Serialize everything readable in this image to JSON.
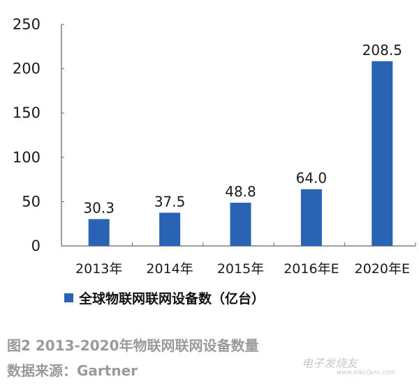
{
  "chart_data": {
    "type": "bar",
    "categories": [
      "2013年",
      "2014年",
      "2015年",
      "2016年E",
      "2020年E"
    ],
    "values": [
      30.3,
      37.5,
      48.8,
      64.0,
      208.5
    ],
    "data_labels": [
      "30.3",
      "37.5",
      "48.8",
      "64.0",
      "208.5"
    ],
    "ylim": [
      0,
      250
    ],
    "yticks": [
      "0",
      "50",
      "100",
      "150",
      "200",
      "250"
    ],
    "grid": false,
    "legend": {
      "label": "全球物联网联网设备数（亿台）",
      "placement": "bottom"
    },
    "bar_color": "#2a62b4"
  },
  "caption": "图2   2013-2020年物联网联网设备数量",
  "source": "数据来源：Gartner",
  "watermark": {
    "text": "电子发烧友",
    "url": "www.elecfans.com"
  }
}
